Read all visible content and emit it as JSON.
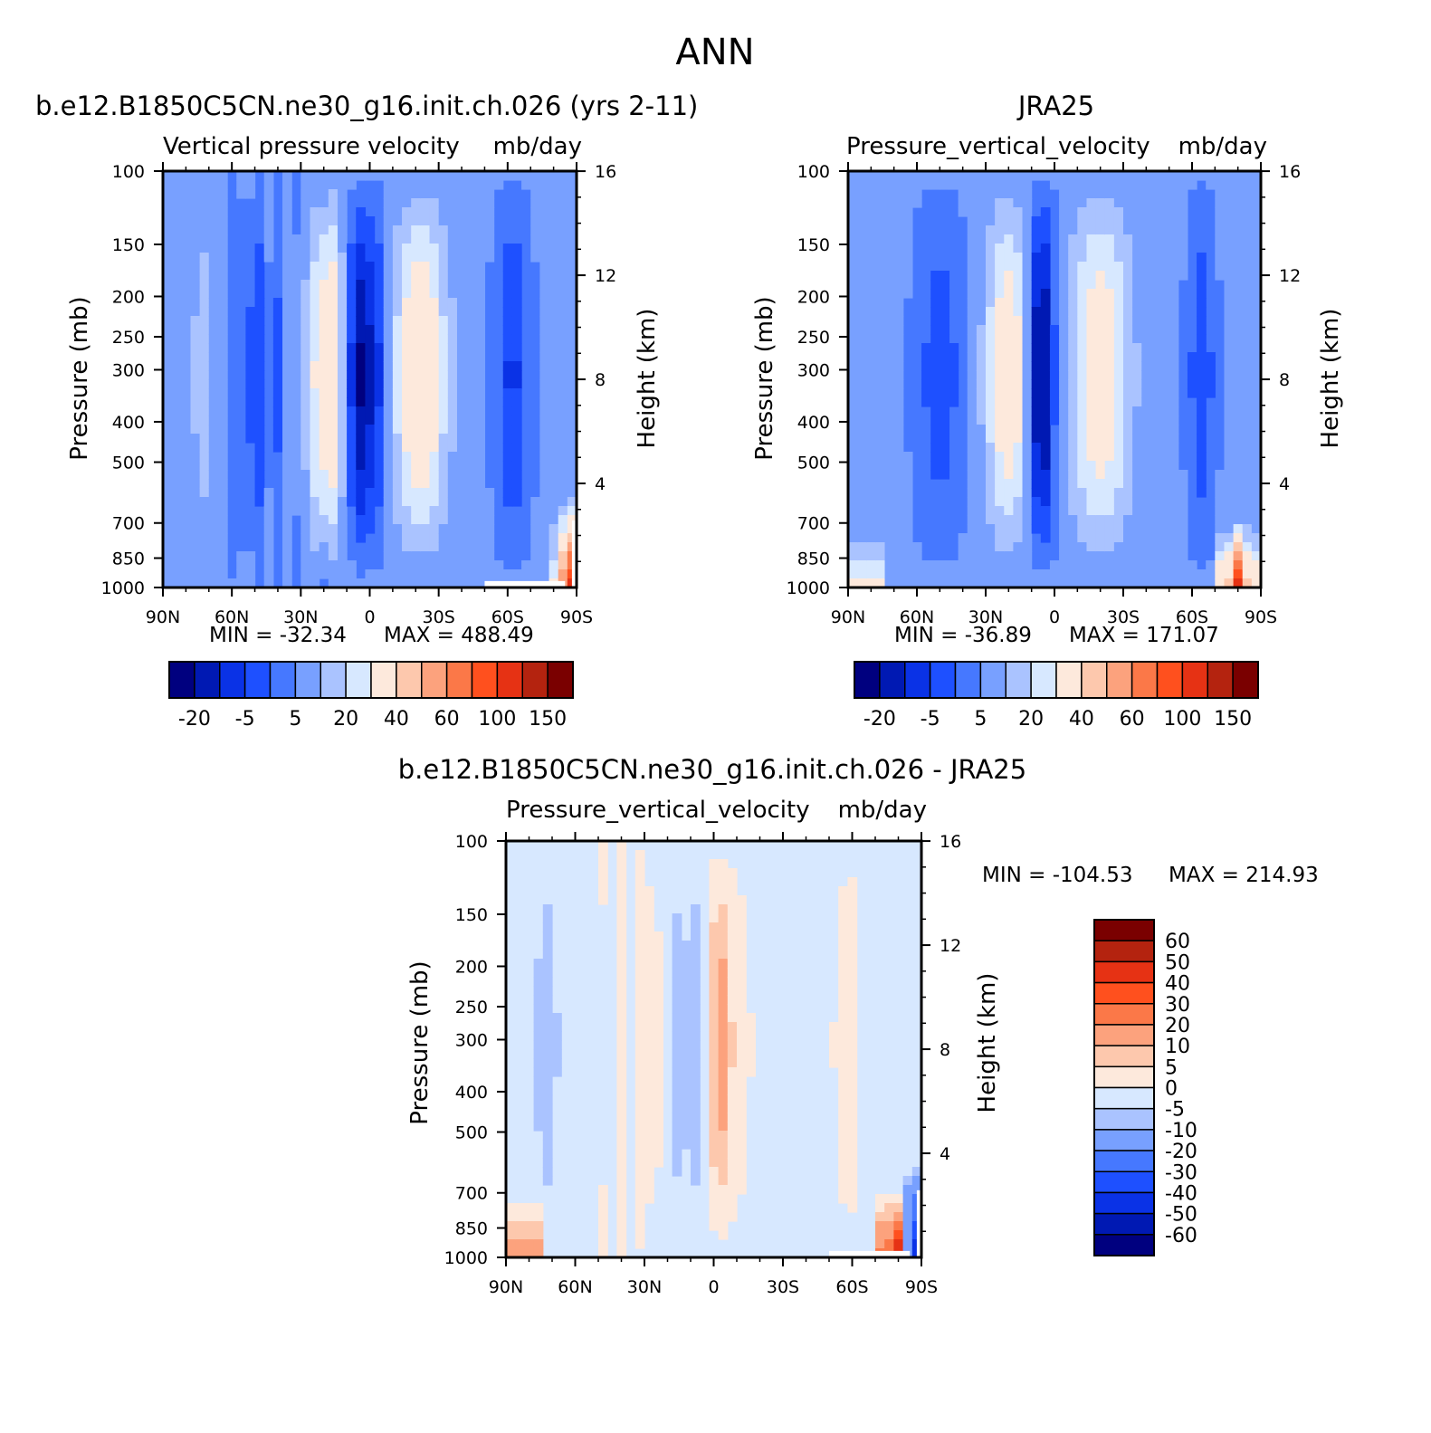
{
  "title": "ANN",
  "chart_data": [
    {
      "type": "heatmap",
      "title": "b.e12.B1850C5CN.ne30_g16.init.ch.026 (yrs 2-11)",
      "subtitle": "Vertical pressure velocity",
      "units": "mb/day",
      "ylabel": "Pressure (mb)",
      "ylabel_right": "Height (km)",
      "x_ticks": [
        "90N",
        "60N",
        "30N",
        "0",
        "30S",
        "60S",
        "90S"
      ],
      "y_ticks": [
        100,
        150,
        200,
        250,
        300,
        400,
        500,
        700,
        850,
        1000
      ],
      "y_right_ticks": [
        4,
        8,
        12,
        16
      ],
      "yscale": "log",
      "ylim": [
        1000,
        100
      ],
      "xlim": [
        90,
        -90
      ],
      "min_label": "MIN = -32.34",
      "max_label": "MAX = 488.49",
      "min": -32.34,
      "max": 488.49,
      "colorbar_levels": [
        "-20",
        "-5",
        "5",
        "20",
        "40",
        "60",
        "100",
        "150"
      ]
    },
    {
      "type": "heatmap",
      "title": "JRA25",
      "subtitle": "Pressure_vertical_velocity",
      "units": "mb/day",
      "ylabel": "Pressure (mb)",
      "ylabel_right": "Height (km)",
      "x_ticks": [
        "90N",
        "60N",
        "30N",
        "0",
        "30S",
        "60S",
        "90S"
      ],
      "y_ticks": [
        100,
        150,
        200,
        250,
        300,
        400,
        500,
        700,
        850,
        1000
      ],
      "y_right_ticks": [
        4,
        8,
        12,
        16
      ],
      "yscale": "log",
      "ylim": [
        1000,
        100
      ],
      "xlim": [
        90,
        -90
      ],
      "min_label": "MIN = -36.89",
      "max_label": "MAX = 171.07",
      "min": -36.89,
      "max": 171.07,
      "colorbar_levels": [
        "-20",
        "-5",
        "5",
        "20",
        "40",
        "60",
        "100",
        "150"
      ]
    },
    {
      "type": "heatmap",
      "title": "b.e12.B1850C5CN.ne30_g16.init.ch.026 - JRA25",
      "subtitle": "Pressure_vertical_velocity",
      "units": "mb/day",
      "ylabel": "Pressure (mb)",
      "ylabel_right": "Height (km)",
      "x_ticks": [
        "90N",
        "60N",
        "30N",
        "0",
        "30S",
        "60S",
        "90S"
      ],
      "y_ticks": [
        100,
        150,
        200,
        250,
        300,
        400,
        500,
        700,
        850,
        1000
      ],
      "y_right_ticks": [
        4,
        8,
        12,
        16
      ],
      "yscale": "log",
      "ylim": [
        1000,
        100
      ],
      "xlim": [
        90,
        -90
      ],
      "min_label": "MIN = -104.53",
      "max_label": "MAX = 214.93",
      "min": -104.53,
      "max": 214.93,
      "colorbar_levels": [
        "60",
        "50",
        "40",
        "30",
        "20",
        "10",
        "5",
        "0",
        "-5",
        "-10",
        "-20",
        "-30",
        "-40",
        "-50",
        "-60"
      ]
    }
  ],
  "colors": {
    "abs_palette": [
      "#00007f",
      "#0019b3",
      "#0a32e6",
      "#1e50ff",
      "#4678ff",
      "#78a0ff",
      "#aac3ff",
      "#d7e8ff",
      "#fde9dc",
      "#fdc8ad",
      "#fca27d",
      "#fb7848",
      "#ff501e",
      "#e63214",
      "#b4230f",
      "#7a0000"
    ],
    "diff_palette": [
      "#7a0000",
      "#b4230f",
      "#e63214",
      "#ff501e",
      "#fb7848",
      "#fca27d",
      "#fdc8ad",
      "#fde9dc",
      "#d7e8ff",
      "#aac3ff",
      "#78a0ff",
      "#4678ff",
      "#1e50ff",
      "#0a32e6",
      "#0019b3",
      "#00007f"
    ]
  }
}
